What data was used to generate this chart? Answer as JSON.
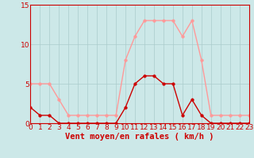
{
  "x": [
    0,
    1,
    2,
    3,
    4,
    5,
    6,
    7,
    8,
    9,
    10,
    11,
    12,
    13,
    14,
    15,
    16,
    17,
    18,
    19,
    20,
    21,
    22,
    23
  ],
  "wind_avg": [
    2,
    1,
    1,
    0,
    0,
    0,
    0,
    0,
    0,
    0,
    2,
    5,
    6,
    6,
    5,
    5,
    1,
    3,
    1,
    0,
    0,
    0,
    0,
    0
  ],
  "wind_gust": [
    5,
    5,
    5,
    3,
    1,
    1,
    1,
    1,
    1,
    1,
    8,
    11,
    13,
    13,
    13,
    13,
    11,
    13,
    8,
    1,
    1,
    1,
    1,
    1
  ],
  "color_avg": "#cc0000",
  "color_gust": "#ff9999",
  "bg_color": "#cce8e8",
  "grid_color": "#aacccc",
  "xlabel": "Vent moyen/en rafales ( km/h )",
  "ylim": [
    0,
    15
  ],
  "xlim": [
    0,
    23
  ],
  "yticks": [
    0,
    5,
    10,
    15
  ],
  "xticks": [
    0,
    1,
    2,
    3,
    4,
    5,
    6,
    7,
    8,
    9,
    10,
    11,
    12,
    13,
    14,
    15,
    16,
    17,
    18,
    19,
    20,
    21,
    22,
    23
  ],
  "tick_fontsize": 6.5,
  "xlabel_fontsize": 7.5,
  "marker_size": 2.5,
  "line_width": 1.0
}
